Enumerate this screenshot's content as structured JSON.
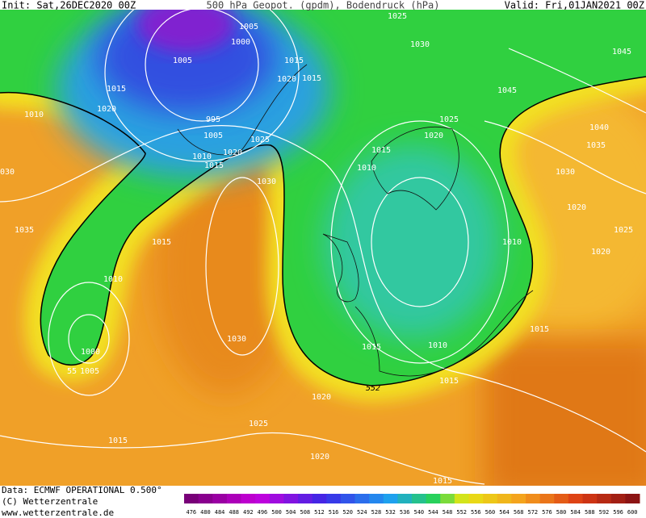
{
  "header": {
    "init": "Init: Sat,26DEC2020 00Z",
    "title": "500 hPa Geopot. (gpdm), Bodendruck (hPa)",
    "valid": "Valid: Fri,01JAN2021 00Z"
  },
  "map": {
    "contour_labels": [
      "1025",
      "1005",
      "1000",
      "1030",
      "1045",
      "1005",
      "1015",
      "1020",
      "1015",
      "1015",
      "1045",
      "1020",
      "1010",
      "995",
      "1025",
      "1040",
      "1020",
      "1005",
      "1025",
      "1035",
      "1020",
      "1015",
      "1010",
      "1015",
      "1010",
      "1030",
      "1030",
      "1030",
      "1020",
      "1035",
      "1025",
      "1015",
      "1010",
      "1020",
      "1010",
      "1015",
      "1030",
      "1015",
      "1010",
      "1000",
      "55",
      "1005",
      "552",
      "1015",
      "1020",
      "1025",
      "1015",
      "1020",
      "1015"
    ]
  },
  "footer": {
    "data": "Data: ECMWF OPERATIONAL 0.500°",
    "copyright": "(C) Wetterzentrale",
    "url": "www.wetterzentrale.de"
  },
  "colorbar": {
    "ticks": [
      476,
      480,
      484,
      488,
      492,
      496,
      500,
      504,
      508,
      512,
      516,
      520,
      524,
      528,
      532,
      536,
      540,
      544,
      548,
      552,
      556,
      560,
      564,
      568,
      572,
      576,
      580,
      584,
      588,
      592,
      596,
      600
    ]
  }
}
